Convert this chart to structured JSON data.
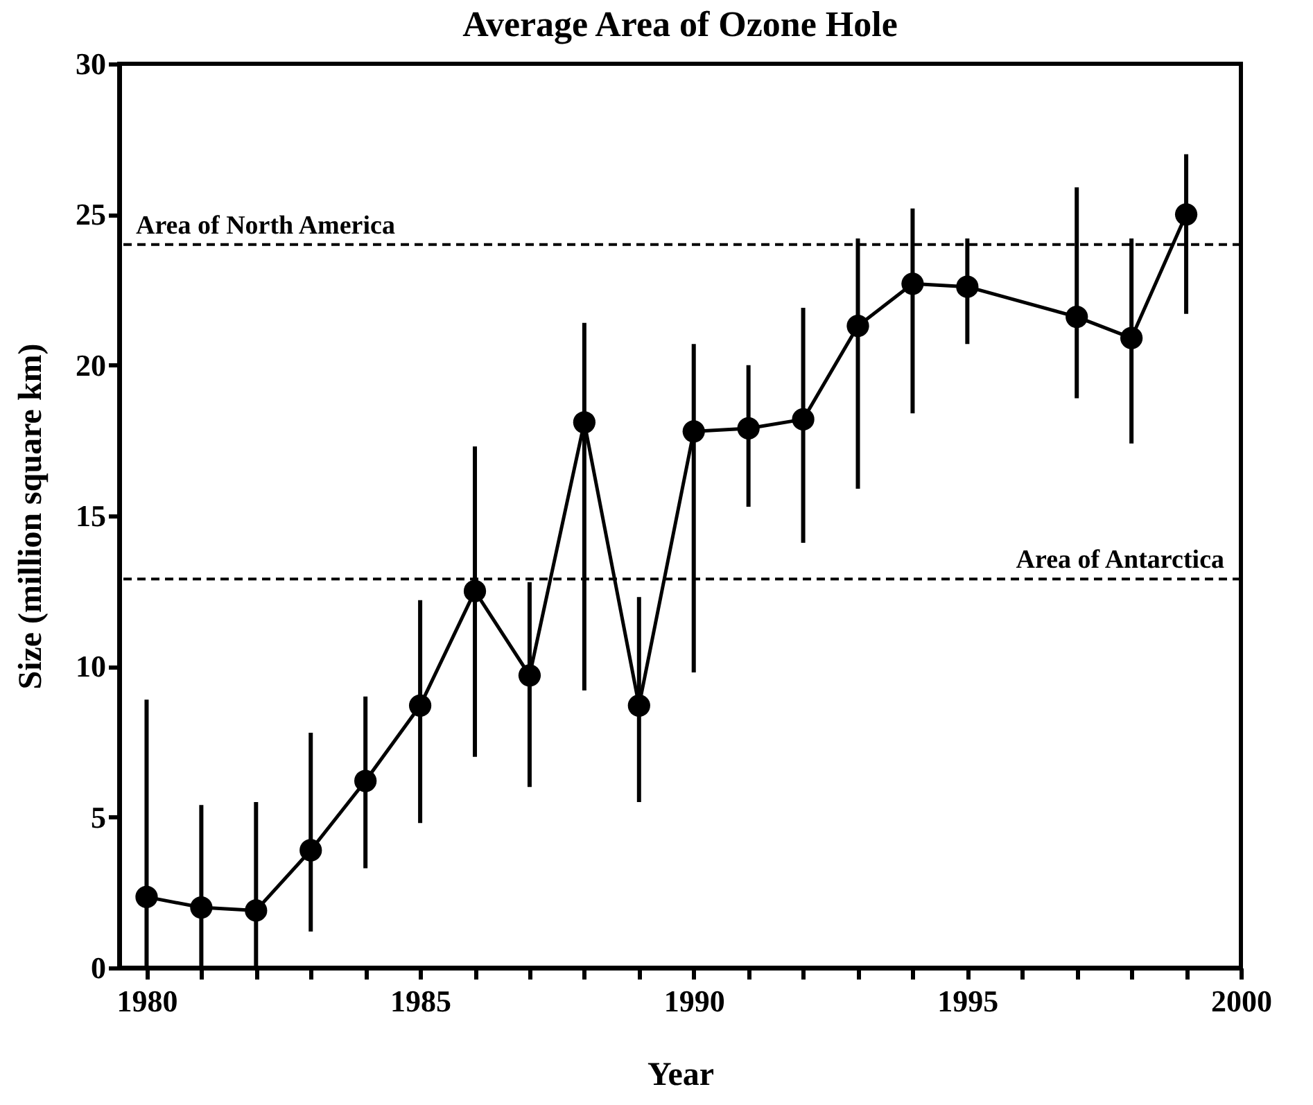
{
  "chart_data": {
    "type": "line",
    "title": "Average Area of Ozone Hole",
    "xlabel": "Year",
    "ylabel": "Size (million square km)",
    "x": [
      1980,
      1981,
      1982,
      1983,
      1984,
      1985,
      1986,
      1987,
      1988,
      1989,
      1990,
      1991,
      1992,
      1993,
      1994,
      1995,
      1997,
      1998,
      1999
    ],
    "series": [
      {
        "color": "#000000",
        "values": [
          2.35,
          2.0,
          1.9,
          3.9,
          6.2,
          8.7,
          12.5,
          9.7,
          18.1,
          8.7,
          17.8,
          17.9,
          18.2,
          21.3,
          22.7,
          22.6,
          21.6,
          20.9,
          25.0
        ],
        "errors": [
          [
            0,
            8.9
          ],
          [
            0,
            5.4
          ],
          [
            0,
            5.5
          ],
          [
            1.2,
            7.8
          ],
          [
            3.3,
            9.0
          ],
          [
            4.8,
            12.2
          ],
          [
            7.0,
            17.3
          ],
          [
            6.0,
            12.8
          ],
          [
            9.2,
            21.4
          ],
          [
            5.5,
            12.3
          ],
          [
            9.8,
            20.7
          ],
          [
            15.3,
            20.0
          ],
          [
            14.1,
            21.9
          ],
          [
            15.9,
            24.2
          ],
          [
            18.4,
            25.2
          ],
          [
            20.7,
            24.2
          ],
          [
            18.9,
            25.9
          ],
          [
            17.4,
            24.2
          ],
          [
            21.7,
            27.0
          ]
        ]
      }
    ],
    "marker": "circle",
    "line_style": "solid",
    "grid": false,
    "xlim": [
      1979.5,
      2000
    ],
    "xticks": [
      1980,
      {
        "value": 1981,
        "label": null
      },
      {
        "value": 1982,
        "label": null
      },
      {
        "value": 1983,
        "label": null
      },
      {
        "value": 1984,
        "label": null
      },
      1985,
      {
        "value": 1986,
        "label": null
      },
      {
        "value": 1987,
        "label": null
      },
      {
        "value": 1988,
        "label": null
      },
      {
        "value": 1989,
        "label": null
      },
      1990,
      {
        "value": 1991,
        "label": null
      },
      {
        "value": 1992,
        "label": null
      },
      {
        "value": 1993,
        "label": null
      },
      {
        "value": 1994,
        "label": null
      },
      1995,
      {
        "value": 1996,
        "label": null
      },
      {
        "value": 1997,
        "label": null
      },
      {
        "value": 1998,
        "label": null
      },
      {
        "value": 1999,
        "label": null
      },
      2000
    ],
    "ylim": [
      0,
      30
    ],
    "yticks": [
      0,
      5,
      10,
      15,
      20,
      25,
      30
    ],
    "ref_lines": [
      {
        "axis": "y",
        "value": 24.0,
        "label": "Area of North America",
        "line_style": "dashed",
        "color": "#000000"
      },
      {
        "axis": "y",
        "value": 12.9,
        "label": "Area of Antarctica",
        "line_style": "dashed",
        "color": "#000000"
      }
    ]
  }
}
